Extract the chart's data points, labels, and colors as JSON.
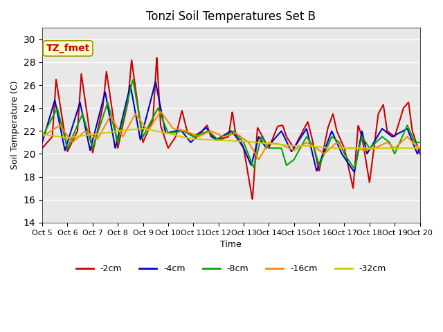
{
  "title": "Tonzi Soil Temperatures Set B",
  "xlabel": "Time",
  "ylabel": "Soil Temperature (C)",
  "ylim": [
    14,
    31
  ],
  "yticks": [
    14,
    16,
    18,
    20,
    22,
    24,
    26,
    28,
    30
  ],
  "xtick_labels": [
    "Oct 5",
    "Oct 6",
    "Oct 7",
    "Oct 8",
    "Oct 9",
    "Oct 10",
    "Oct 11",
    "Oct 12",
    "Oct 13",
    "Oct 14",
    "Oct 15",
    "Oct 16",
    "Oct 17",
    "Oct 18",
    "Oct 19",
    "Oct 20"
  ],
  "annotation_text": "TZ_fmet",
  "colors": {
    "-2cm": "#cc0000",
    "-4cm": "#0000cc",
    "-8cm": "#00aa00",
    "-16cm": "#ff8800",
    "-32cm": "#cccc00"
  },
  "bg_color": "#e8e8e8",
  "fig_color": "#ffffff"
}
